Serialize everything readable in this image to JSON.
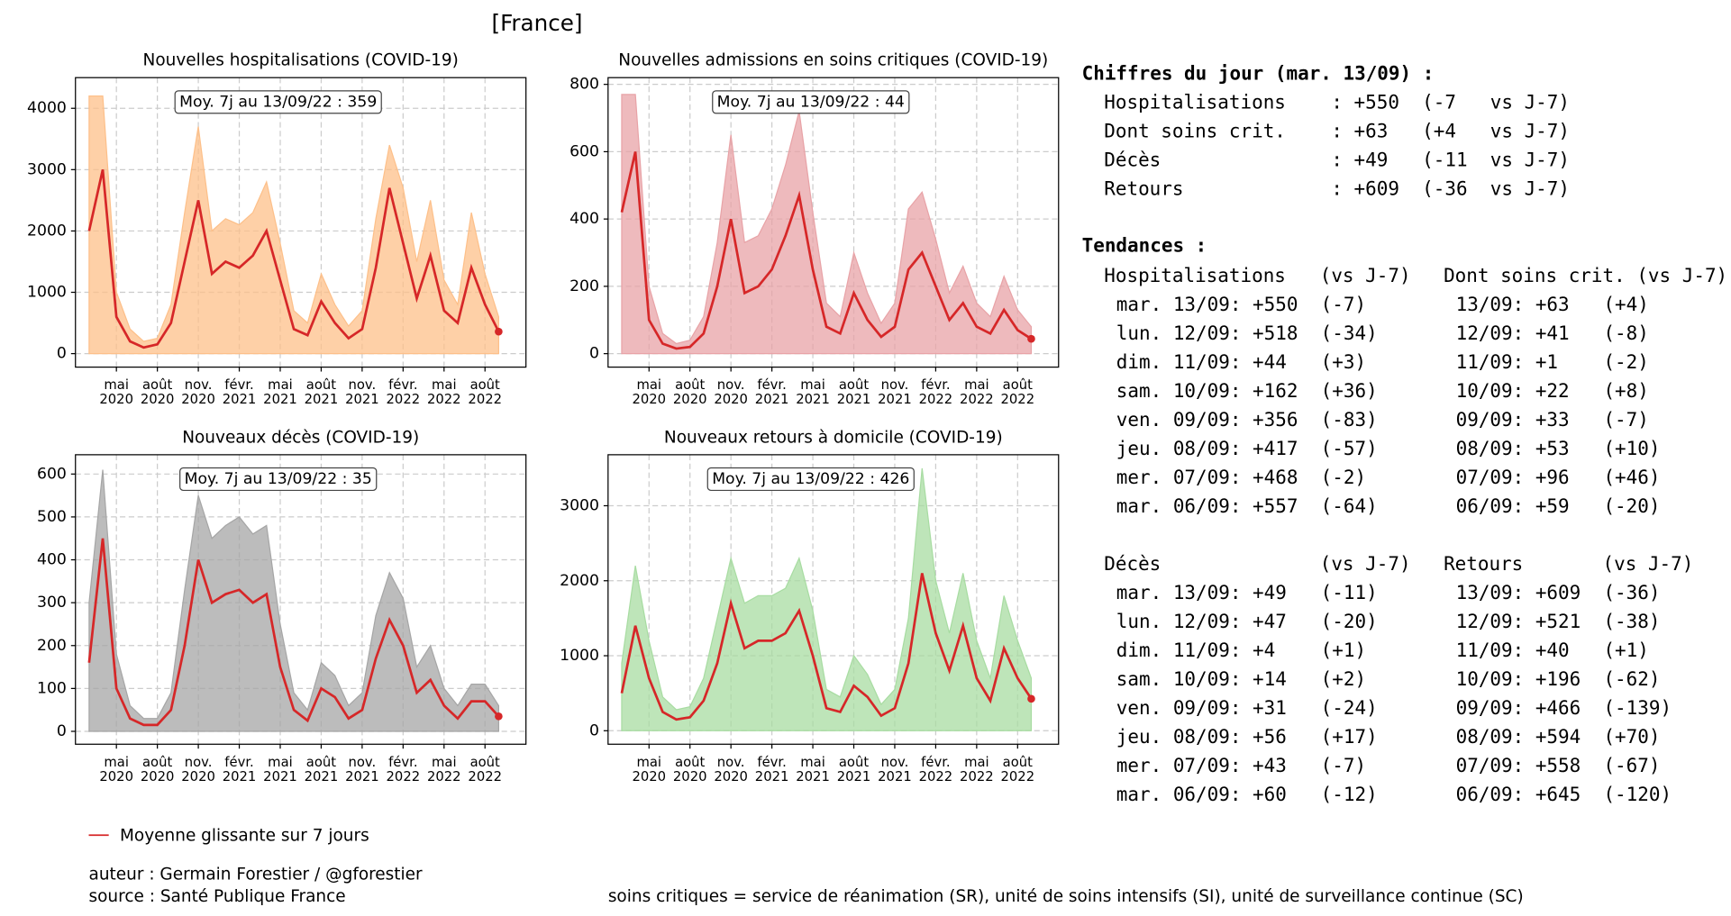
{
  "title": "[France]",
  "chart_data": [
    {
      "type": "line",
      "title": "Nouvelles hospitalisations (COVID-19)",
      "annotation": "Moy. 7j au 13/09/22 : 359",
      "x": [
        "2020-03",
        "2020-04",
        "2020-05",
        "2020-06",
        "2020-07",
        "2020-08",
        "2020-09",
        "2020-10",
        "2020-11",
        "2020-12",
        "2021-01",
        "2021-02",
        "2021-03",
        "2021-04",
        "2021-05",
        "2021-06",
        "2021-07",
        "2021-08",
        "2021-09",
        "2021-10",
        "2021-11",
        "2021-12",
        "2022-01",
        "2022-02",
        "2022-03",
        "2022-04",
        "2022-05",
        "2022-06",
        "2022-07",
        "2022-08",
        "2022-09"
      ],
      "series": [
        {
          "color": "#fdc08a",
          "values": [
            4200,
            4200,
            1000,
            400,
            200,
            250,
            800,
            2300,
            3700,
            2000,
            2200,
            2100,
            2300,
            2800,
            1800,
            700,
            500,
            1300,
            800,
            450,
            700,
            2200,
            3400,
            2700,
            1500,
            2500,
            1200,
            800,
            2300,
            1300,
            600
          ]
        },
        {
          "name": "Moyenne glissante sur 7 jours",
          "color": "#d62728",
          "values": [
            2000,
            3000,
            600,
            200,
            100,
            150,
            500,
            1500,
            2500,
            1300,
            1500,
            1400,
            1600,
            2000,
            1200,
            400,
            300,
            850,
            500,
            250,
            400,
            1400,
            2700,
            1800,
            900,
            1600,
            700,
            500,
            1400,
            800,
            359
          ]
        }
      ],
      "xlim": [
        "2020-02",
        "2022-11"
      ],
      "ylim": [
        -220,
        4500
      ],
      "yticks": [
        0,
        1000,
        2000,
        3000,
        4000
      ],
      "grid": true,
      "xticks": [
        {
          "value": "2020-05",
          "label": "mai\n2020"
        },
        {
          "value": "2020-08",
          "label": "août\n2020"
        },
        {
          "value": "2020-11",
          "label": "nov.\n2020"
        },
        {
          "value": "2021-02",
          "label": "févr.\n2021"
        },
        {
          "value": "2021-05",
          "label": "mai\n2021"
        },
        {
          "value": "2021-08",
          "label": "août\n2021"
        },
        {
          "value": "2021-11",
          "label": "nov.\n2021"
        },
        {
          "value": "2022-02",
          "label": "févr.\n2022"
        },
        {
          "value": "2022-05",
          "label": "mai\n2022"
        },
        {
          "value": "2022-08",
          "label": "août\n2022"
        }
      ]
    },
    {
      "type": "line",
      "title": "Nouvelles admissions en soins critiques (COVID-19)",
      "annotation": "Moy. 7j au 13/09/22 : 44",
      "x": [
        "2020-03",
        "2020-04",
        "2020-05",
        "2020-06",
        "2020-07",
        "2020-08",
        "2020-09",
        "2020-10",
        "2020-11",
        "2020-12",
        "2021-01",
        "2021-02",
        "2021-03",
        "2021-04",
        "2021-05",
        "2021-06",
        "2021-07",
        "2021-08",
        "2021-09",
        "2021-10",
        "2021-11",
        "2021-12",
        "2022-01",
        "2022-02",
        "2022-03",
        "2022-04",
        "2022-05",
        "2022-06",
        "2022-07",
        "2022-08",
        "2022-09"
      ],
      "series": [
        {
          "color": "#e8a3a7",
          "values": [
            770,
            770,
            200,
            60,
            30,
            40,
            110,
            330,
            650,
            330,
            350,
            430,
            560,
            720,
            420,
            150,
            110,
            300,
            180,
            90,
            150,
            430,
            480,
            340,
            180,
            260,
            150,
            110,
            230,
            130,
            80
          ]
        },
        {
          "color": "#d62728",
          "values": [
            420,
            600,
            100,
            30,
            15,
            20,
            60,
            200,
            400,
            180,
            200,
            250,
            350,
            470,
            250,
            80,
            60,
            180,
            100,
            50,
            80,
            250,
            300,
            200,
            100,
            150,
            80,
            60,
            130,
            70,
            44
          ]
        }
      ],
      "xlim": [
        "2020-02",
        "2022-11"
      ],
      "ylim": [
        -40,
        820
      ],
      "yticks": [
        0,
        200,
        400,
        600,
        800
      ],
      "grid": true,
      "xticks": [
        {
          "value": "2020-05",
          "label": "mai\n2020"
        },
        {
          "value": "2020-08",
          "label": "août\n2020"
        },
        {
          "value": "2020-11",
          "label": "nov.\n2020"
        },
        {
          "value": "2021-02",
          "label": "févr.\n2021"
        },
        {
          "value": "2021-05",
          "label": "mai\n2021"
        },
        {
          "value": "2021-08",
          "label": "août\n2021"
        },
        {
          "value": "2021-11",
          "label": "nov.\n2021"
        },
        {
          "value": "2022-02",
          "label": "févr.\n2022"
        },
        {
          "value": "2022-05",
          "label": "mai\n2022"
        },
        {
          "value": "2022-08",
          "label": "août\n2022"
        }
      ]
    },
    {
      "type": "line",
      "title": "Nouveaux décès (COVID-19)",
      "annotation": "Moy. 7j au 13/09/22 : 35",
      "x": [
        "2020-03",
        "2020-04",
        "2020-05",
        "2020-06",
        "2020-07",
        "2020-08",
        "2020-09",
        "2020-10",
        "2020-11",
        "2020-12",
        "2021-01",
        "2021-02",
        "2021-03",
        "2021-04",
        "2021-05",
        "2021-06",
        "2021-07",
        "2021-08",
        "2021-09",
        "2021-10",
        "2021-11",
        "2021-12",
        "2022-01",
        "2022-02",
        "2022-03",
        "2022-04",
        "2022-05",
        "2022-06",
        "2022-07",
        "2022-08",
        "2022-09"
      ],
      "series": [
        {
          "color": "#a6a6a6",
          "values": [
            300,
            610,
            180,
            60,
            30,
            30,
            90,
            330,
            550,
            450,
            480,
            500,
            460,
            480,
            250,
            90,
            50,
            160,
            130,
            60,
            90,
            270,
            370,
            310,
            150,
            200,
            100,
            60,
            110,
            110,
            60
          ]
        },
        {
          "color": "#d62728",
          "values": [
            160,
            450,
            100,
            30,
            15,
            15,
            50,
            200,
            400,
            300,
            320,
            330,
            300,
            320,
            150,
            50,
            25,
            100,
            80,
            30,
            50,
            170,
            260,
            200,
            90,
            120,
            60,
            30,
            70,
            70,
            35
          ]
        }
      ],
      "xlim": [
        "2020-02",
        "2022-11"
      ],
      "ylim": [
        -30,
        645
      ],
      "yticks": [
        0,
        100,
        200,
        300,
        400,
        500,
        600
      ],
      "grid": true,
      "xticks": [
        {
          "value": "2020-05",
          "label": "mai\n2020"
        },
        {
          "value": "2020-08",
          "label": "août\n2020"
        },
        {
          "value": "2020-11",
          "label": "nov.\n2020"
        },
        {
          "value": "2021-02",
          "label": "févr.\n2021"
        },
        {
          "value": "2021-05",
          "label": "mai\n2021"
        },
        {
          "value": "2021-08",
          "label": "août\n2021"
        },
        {
          "value": "2021-11",
          "label": "nov.\n2021"
        },
        {
          "value": "2022-02",
          "label": "févr.\n2022"
        },
        {
          "value": "2022-05",
          "label": "mai\n2022"
        },
        {
          "value": "2022-08",
          "label": "août\n2022"
        }
      ]
    },
    {
      "type": "line",
      "title": "Nouveaux retours à domicile (COVID-19)",
      "annotation": "Moy. 7j au 13/09/22 : 426",
      "x": [
        "2020-03",
        "2020-04",
        "2020-05",
        "2020-06",
        "2020-07",
        "2020-08",
        "2020-09",
        "2020-10",
        "2020-11",
        "2020-12",
        "2021-01",
        "2021-02",
        "2021-03",
        "2021-04",
        "2021-05",
        "2021-06",
        "2021-07",
        "2021-08",
        "2021-09",
        "2021-10",
        "2021-11",
        "2021-12",
        "2022-01",
        "2022-02",
        "2022-03",
        "2022-04",
        "2022-05",
        "2022-06",
        "2022-07",
        "2022-08",
        "2022-09"
      ],
      "series": [
        {
          "color": "#a8dca2",
          "values": [
            900,
            2200,
            1200,
            450,
            280,
            320,
            700,
            1500,
            2300,
            1700,
            1800,
            1800,
            1900,
            2300,
            1600,
            550,
            450,
            1000,
            750,
            350,
            550,
            1500,
            3500,
            2000,
            1300,
            2100,
            1200,
            700,
            1800,
            1200,
            700
          ]
        },
        {
          "color": "#d62728",
          "values": [
            500,
            1400,
            700,
            250,
            150,
            180,
            400,
            900,
            1700,
            1100,
            1200,
            1200,
            1300,
            1600,
            1000,
            300,
            250,
            600,
            450,
            200,
            300,
            900,
            2100,
            1300,
            800,
            1400,
            700,
            400,
            1100,
            700,
            426
          ]
        }
      ],
      "xlim": [
        "2020-02",
        "2022-11"
      ],
      "ylim": [
        -180,
        3680
      ],
      "yticks": [
        0,
        1000,
        2000,
        3000
      ],
      "grid": true,
      "xticks": [
        {
          "value": "2020-05",
          "label": "mai\n2020"
        },
        {
          "value": "2020-08",
          "label": "août\n2020"
        },
        {
          "value": "2020-11",
          "label": "nov.\n2020"
        },
        {
          "value": "2021-02",
          "label": "févr.\n2021"
        },
        {
          "value": "2021-05",
          "label": "mai\n2021"
        },
        {
          "value": "2021-08",
          "label": "août\n2021"
        },
        {
          "value": "2021-11",
          "label": "nov.\n2021"
        },
        {
          "value": "2022-02",
          "label": "févr.\n2022"
        },
        {
          "value": "2022-05",
          "label": "mai\n2022"
        },
        {
          "value": "2022-08",
          "label": "août\n2022"
        }
      ]
    }
  ],
  "summary": {
    "title": "Chiffres du jour (mar. 13/09) :",
    "rows": [
      "Hospitalisations    : +550  (-7   vs J-7)",
      "Dont soins crit.    : +63   (+4   vs J-7)",
      "Décès               : +49   (-11  vs J-7)",
      "Retours             : +609  (-36  vs J-7)"
    ]
  },
  "trends": {
    "title": "Tendances :",
    "blocks": [
      {
        "headers": [
          "Hospitalisations   (vs J-7)",
          "Dont soins crit. (vs J-7)"
        ],
        "rows": [
          [
            "mar. 13/09: +550  (-7)",
            "13/09: +63   (+4)"
          ],
          [
            "lun. 12/09: +518  (-34)",
            "12/09: +41   (-8)"
          ],
          [
            "dim. 11/09: +44   (+3)",
            "11/09: +1    (-2)"
          ],
          [
            "sam. 10/09: +162  (+36)",
            "10/09: +22   (+8)"
          ],
          [
            "ven. 09/09: +356  (-83)",
            "09/09: +33   (-7)"
          ],
          [
            "jeu. 08/09: +417  (-57)",
            "08/09: +53   (+10)"
          ],
          [
            "mer. 07/09: +468  (-2)",
            "07/09: +96   (+46)"
          ],
          [
            "mar. 06/09: +557  (-64)",
            "06/09: +59   (-20)"
          ]
        ]
      },
      {
        "headers": [
          "Décès              (vs J-7)",
          "Retours       (vs J-7)"
        ],
        "rows": [
          [
            "mar. 13/09: +49   (-11)",
            "13/09: +609  (-36)"
          ],
          [
            "lun. 12/09: +47   (-20)",
            "12/09: +521  (-38)"
          ],
          [
            "dim. 11/09: +4    (+1)",
            "11/09: +40   (+1)"
          ],
          [
            "sam. 10/09: +14   (+2)",
            "10/09: +196  (-62)"
          ],
          [
            "ven. 09/09: +31   (-24)",
            "09/09: +466  (-139)"
          ],
          [
            "jeu. 08/09: +56   (+17)",
            "08/09: +594  (+70)"
          ],
          [
            "mer. 07/09: +43   (-7)",
            "07/09: +558  (-67)"
          ],
          [
            "mar. 06/09: +60   (-12)",
            "06/09: +645  (-120)"
          ]
        ]
      }
    ]
  },
  "footer": {
    "author": "auteur : Germain Forestier / @gforestier",
    "source": "source : Santé Publique France",
    "note": "soins critiques = service de réanimation (SR), unité de soins intensifs (SI), unité de surveillance continue (SC)"
  }
}
